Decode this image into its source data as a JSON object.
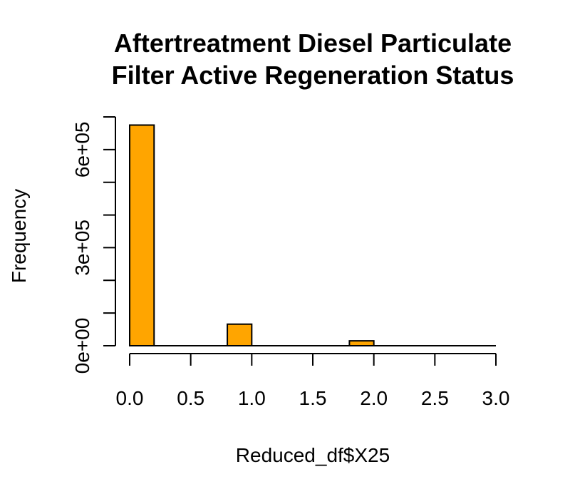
{
  "chart_data": {
    "type": "bar",
    "title_lines": [
      "Aftertreatment Diesel Particulate",
      "Filter Active Regeneration Status"
    ],
    "xlabel": "Reduced_df$X25",
    "ylabel": "Frequency",
    "xlim": [
      0,
      3
    ],
    "ylim": [
      0,
      700000
    ],
    "x_ticks": [
      {
        "value": 0.0,
        "label": "0.0"
      },
      {
        "value": 0.5,
        "label": "0.5"
      },
      {
        "value": 1.0,
        "label": "1.0"
      },
      {
        "value": 1.5,
        "label": "1.5"
      },
      {
        "value": 2.0,
        "label": "2.0"
      },
      {
        "value": 2.5,
        "label": "2.5"
      },
      {
        "value": 3.0,
        "label": "3.0"
      }
    ],
    "y_ticks": [
      {
        "value": 0,
        "label": "0e+00"
      },
      {
        "value": 100000,
        "label": ""
      },
      {
        "value": 200000,
        "label": ""
      },
      {
        "value": 300000,
        "label": "3e+05"
      },
      {
        "value": 400000,
        "label": ""
      },
      {
        "value": 500000,
        "label": ""
      },
      {
        "value": 600000,
        "label": "6e+05"
      },
      {
        "value": 700000,
        "label": ""
      }
    ],
    "bins": [
      {
        "x0": 0.0,
        "x1": 0.2,
        "value": 675000
      },
      {
        "x0": 0.8,
        "x1": 1.0,
        "value": 66000
      },
      {
        "x0": 1.8,
        "x1": 2.0,
        "value": 15000
      }
    ],
    "bar_color": "#FFA500",
    "bar_stroke": "#000000",
    "grid": false
  }
}
